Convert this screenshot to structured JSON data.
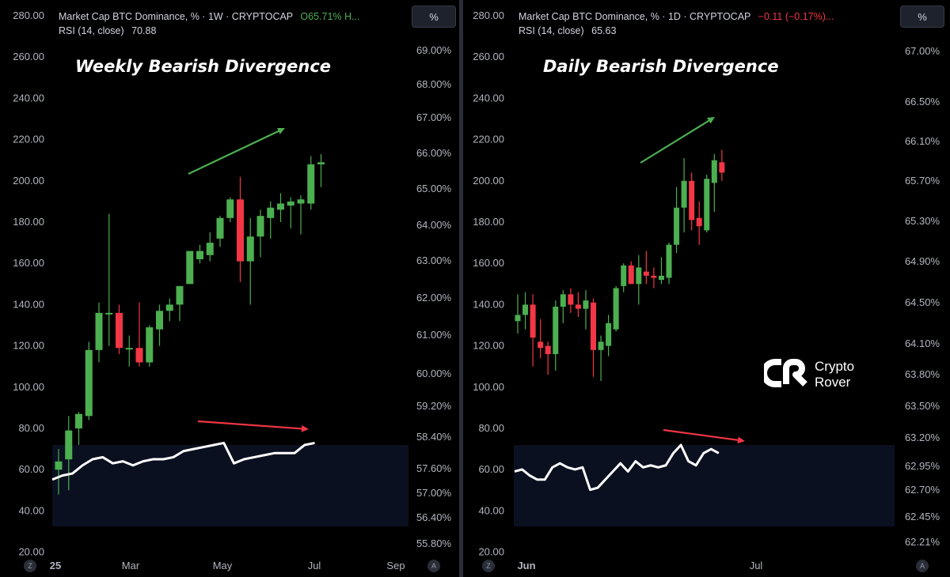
{
  "colors": {
    "up": "#4caf50",
    "down": "#f23645",
    "rsi_line": "#ffffff",
    "rsi_band": "#0b1020",
    "arrow_up": "#4caf50",
    "arrow_down": "#f23645",
    "axis_text": "#b2b5be",
    "bg": "#000000"
  },
  "controls": {
    "auto": "A",
    "zoom": "Z",
    "percent": "%"
  },
  "logo": {
    "line1": "Crypto",
    "line2": "Rover"
  },
  "chart_data": [
    {
      "type": "candlestick",
      "header": {
        "symbol": "Market Cap BTC Dominance, % · 1W · CRYPTOCAP",
        "ohlc": "O65.71% H...",
        "rsi_label": "RSI (14, close)",
        "rsi_value": "70.88"
      },
      "title": "Weekly Bearish Divergence",
      "x_ticks": [
        "25",
        "Mar",
        "May",
        "Jul",
        "Sep"
      ],
      "left_axis_ticks": [
        "280.00",
        "260.00",
        "240.00",
        "220.00",
        "200.00",
        "180.00",
        "160.00",
        "140.00",
        "120.00",
        "100.00",
        "80.00",
        "60.00",
        "40.00",
        "20.00"
      ],
      "right_axis_ticks": [
        "69.00%",
        "68.00%",
        "67.00%",
        "66.00%",
        "65.00%",
        "64.00%",
        "63.00%",
        "62.00%",
        "61.00%",
        "60.00%",
        "59.20%",
        "58.40%",
        "57.60%",
        "57.00%",
        "56.40%",
        "55.80%"
      ],
      "rsi_band": [
        30,
        70
      ],
      "candles_left_scale": [
        {
          "o": 60,
          "h": 70,
          "l": 48,
          "c": 64
        },
        {
          "o": 65,
          "h": 86,
          "l": 50,
          "c": 79
        },
        {
          "o": 80,
          "h": 88,
          "l": 72,
          "c": 87
        },
        {
          "o": 86,
          "h": 122,
          "l": 84,
          "c": 118
        },
        {
          "o": 118,
          "h": 141,
          "l": 112,
          "c": 136
        },
        {
          "o": 136,
          "h": 184,
          "l": 120,
          "c": 136
        },
        {
          "o": 136,
          "h": 140,
          "l": 116,
          "c": 119
        },
        {
          "o": 119,
          "h": 125,
          "l": 110,
          "c": 119
        },
        {
          "o": 119,
          "h": 141,
          "l": 110,
          "c": 112
        },
        {
          "o": 112,
          "h": 130,
          "l": 110,
          "c": 129
        },
        {
          "o": 128,
          "h": 140,
          "l": 120,
          "c": 137
        },
        {
          "o": 137,
          "h": 143,
          "l": 132,
          "c": 140
        },
        {
          "o": 140,
          "h": 149,
          "l": 132,
          "c": 149
        },
        {
          "o": 150,
          "h": 166,
          "l": 150,
          "c": 166
        },
        {
          "o": 162,
          "h": 169,
          "l": 160,
          "c": 166
        },
        {
          "o": 164,
          "h": 175,
          "l": 161,
          "c": 170
        },
        {
          "o": 172,
          "h": 183,
          "l": 168,
          "c": 182
        },
        {
          "o": 182,
          "h": 192,
          "l": 180,
          "c": 191
        },
        {
          "o": 191,
          "h": 202,
          "l": 151,
          "c": 161
        },
        {
          "o": 161,
          "h": 182,
          "l": 140,
          "c": 173
        },
        {
          "o": 173,
          "h": 186,
          "l": 163,
          "c": 183
        },
        {
          "o": 182,
          "h": 190,
          "l": 172,
          "c": 187
        },
        {
          "o": 186,
          "h": 194,
          "l": 180,
          "c": 189
        },
        {
          "o": 188,
          "h": 192,
          "l": 177,
          "c": 190
        },
        {
          "o": 189,
          "h": 193,
          "l": 174,
          "c": 191
        },
        {
          "o": 189,
          "h": 212,
          "l": 186,
          "c": 208
        },
        {
          "o": 208,
          "h": 213,
          "l": 197,
          "c": 209
        }
      ],
      "rsi": [
        53,
        55,
        56,
        60,
        63,
        64,
        61,
        62,
        60,
        62,
        63,
        63,
        64,
        67,
        68,
        69,
        70,
        71,
        61,
        63,
        64,
        65,
        66,
        66,
        66,
        70,
        71
      ]
    },
    {
      "type": "candlestick",
      "header": {
        "symbol": "Market Cap BTC Dominance, % · 1D · CRYPTOCAP",
        "change": "−0.11 (−0.17%)...",
        "rsi_label": "RSI (14, close)",
        "rsi_value": "65.63"
      },
      "title": "Daily Bearish Divergence",
      "x_ticks": [
        "Jun",
        "Jul"
      ],
      "left_axis_ticks": [
        "280.00",
        "260.00",
        "240.00",
        "220.00",
        "200.00",
        "180.00",
        "160.00",
        "140.00",
        "120.00",
        "100.00",
        "80.00",
        "60.00",
        "40.00",
        "20.00"
      ],
      "right_axis_ticks": [
        "67.00%",
        "66.50%",
        "66.10%",
        "65.70%",
        "65.30%",
        "64.90%",
        "64.50%",
        "64.10%",
        "63.80%",
        "63.50%",
        "63.20%",
        "62.95%",
        "62.70%",
        "62.45%",
        "62.21%"
      ],
      "rsi_band": [
        30,
        70
      ],
      "candles_left_scale": [
        {
          "o": 132,
          "h": 145,
          "l": 126,
          "c": 135
        },
        {
          "o": 135,
          "h": 146,
          "l": 128,
          "c": 140
        },
        {
          "o": 140,
          "h": 145,
          "l": 110,
          "c": 124
        },
        {
          "o": 122,
          "h": 133,
          "l": 114,
          "c": 119
        },
        {
          "o": 120,
          "h": 122,
          "l": 106,
          "c": 116
        },
        {
          "o": 116,
          "h": 142,
          "l": 108,
          "c": 139
        },
        {
          "o": 139,
          "h": 147,
          "l": 131,
          "c": 145
        },
        {
          "o": 145,
          "h": 148,
          "l": 136,
          "c": 140
        },
        {
          "o": 140,
          "h": 146,
          "l": 134,
          "c": 138
        },
        {
          "o": 138,
          "h": 147,
          "l": 128,
          "c": 142
        },
        {
          "o": 141,
          "h": 143,
          "l": 105,
          "c": 118
        },
        {
          "o": 118,
          "h": 125,
          "l": 103,
          "c": 122
        },
        {
          "o": 120,
          "h": 135,
          "l": 115,
          "c": 131
        },
        {
          "o": 128,
          "h": 149,
          "l": 127,
          "c": 148
        },
        {
          "o": 149,
          "h": 160,
          "l": 146,
          "c": 159
        },
        {
          "o": 159,
          "h": 161,
          "l": 150,
          "c": 150
        },
        {
          "o": 150,
          "h": 164,
          "l": 140,
          "c": 158
        },
        {
          "o": 156,
          "h": 166,
          "l": 150,
          "c": 154
        },
        {
          "o": 154,
          "h": 158,
          "l": 148,
          "c": 153
        },
        {
          "o": 152,
          "h": 163,
          "l": 150,
          "c": 154
        },
        {
          "o": 153,
          "h": 170,
          "l": 150,
          "c": 169
        },
        {
          "o": 169,
          "h": 197,
          "l": 165,
          "c": 187
        },
        {
          "o": 187,
          "h": 211,
          "l": 175,
          "c": 200
        },
        {
          "o": 200,
          "h": 204,
          "l": 176,
          "c": 181
        },
        {
          "o": 182,
          "h": 190,
          "l": 169,
          "c": 178
        },
        {
          "o": 176,
          "h": 203,
          "l": 175,
          "c": 201
        },
        {
          "o": 199,
          "h": 213,
          "l": 185,
          "c": 210
        },
        {
          "o": 209,
          "h": 215,
          "l": 200,
          "c": 204
        }
      ],
      "rsi": [
        57,
        58,
        55,
        53,
        53,
        59,
        61,
        59,
        58,
        59,
        48,
        49,
        53,
        57,
        61,
        57,
        62,
        59,
        60,
        59,
        60,
        66,
        70,
        62,
        60,
        66,
        68,
        66
      ]
    }
  ]
}
